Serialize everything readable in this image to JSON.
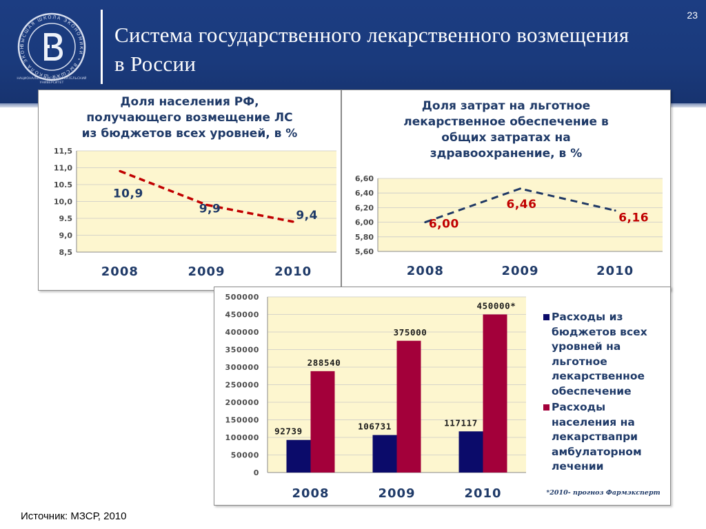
{
  "slide": {
    "page_number": "23",
    "title": "Система  государственного лекарственного возмещения в России",
    "source": "Источник: МЗСР, 2010",
    "logo_caption": "НАЦИОНАЛЬНЫЙ ИССЛЕДОВАТЕЛЬСКИЙ УНИВЕРСИТЕТ",
    "logo_ring_text": "ВЫСШАЯ ШКОЛА ЭКОНОМИКИ"
  },
  "colors": {
    "header": "#1c3d82",
    "plot_bg": "#fdf6cf",
    "dark_red_line": "#c00000",
    "navy_line": "#1f3864",
    "bar_navy": "#0b0b6a",
    "bar_crimson": "#a3003a",
    "label_navy": "#1f3a68",
    "label_red": "#c00000"
  },
  "chart_data": [
    {
      "type": "line",
      "title": "Доля населения РФ, получающего возмещение ЛС из бюджетов всех уровней, в %",
      "categories": [
        "2008",
        "2009",
        "2010"
      ],
      "series": [
        {
          "values": [
            10.9,
            9.9,
            9.4
          ],
          "data_labels": [
            "10,9",
            "9,9",
            "9,4"
          ]
        }
      ],
      "ylim": [
        8.5,
        11.5
      ],
      "y_ticks": [
        "8,5",
        "9,0",
        "9.5",
        "10,0",
        "10.5",
        "11,0",
        "11,5"
      ],
      "y_tick_values": [
        8.5,
        9.0,
        9.5,
        10.0,
        10.5,
        11.0,
        11.5
      ],
      "grid": true,
      "line_style": "dashed"
    },
    {
      "type": "line",
      "title": "Доля затрат на льготное лекарственное обеспечение в общих затратах на здравоохранение, в %",
      "categories": [
        "2008",
        "2009",
        "2010"
      ],
      "series": [
        {
          "values": [
            6.0,
            6.46,
            6.16
          ],
          "data_labels": [
            "6,00",
            "6,46",
            "6,16"
          ]
        }
      ],
      "ylim": [
        5.6,
        6.6
      ],
      "y_ticks": [
        "5,60",
        "5,80",
        "6,00",
        "6,20",
        "6,40",
        "6,60"
      ],
      "y_tick_values": [
        5.6,
        5.8,
        6.0,
        6.2,
        6.4,
        6.6
      ],
      "grid": true,
      "line_style": "dashed"
    },
    {
      "type": "bar",
      "categories": [
        "2008",
        "2009",
        "2010"
      ],
      "series": [
        {
          "name": "Расходы из бюджетов всех уровней на льготное лекарственное обеспечение",
          "values": [
            92739,
            106731,
            117117
          ],
          "data_labels": [
            "92739",
            "106731",
            "117117"
          ]
        },
        {
          "name": "Расходы населения на лекарствапри амбулаторном лечении",
          "values": [
            288540,
            375000,
            450000
          ],
          "data_labels": [
            "288540",
            "375000",
            "450000*"
          ]
        }
      ],
      "ylim": [
        0,
        500000
      ],
      "y_ticks": [
        "0",
        "50000",
        "100000",
        "150000",
        "200000",
        "250000",
        "300000",
        "350000",
        "400000",
        "450000",
        "500000"
      ],
      "y_tick_values": [
        0,
        50000,
        100000,
        150000,
        200000,
        250000,
        300000,
        350000,
        400000,
        450000,
        500000
      ],
      "grid": true,
      "legend_position": "right",
      "footnote": "*2010- прогноз Фармэксперт"
    }
  ]
}
